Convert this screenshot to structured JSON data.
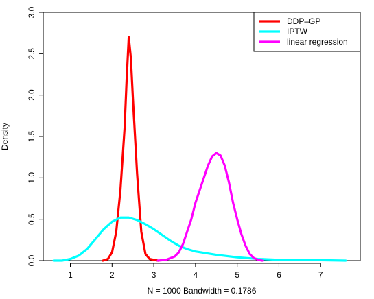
{
  "chart_data": {
    "type": "line",
    "xlabel": "N = 1000   Bandwidth = 0.1786",
    "ylabel": "Density",
    "xlim": [
      0.35,
      7.95
    ],
    "ylim": [
      0,
      3
    ],
    "x_ticks": [
      1,
      2,
      3,
      4,
      5,
      6,
      7
    ],
    "y_ticks": [
      0.0,
      0.5,
      1.0,
      1.5,
      2.0,
      2.5,
      3.0
    ],
    "x_tick_labels": [
      "1",
      "2",
      "3",
      "4",
      "5",
      "6",
      "7"
    ],
    "y_tick_labels": [
      "0.0",
      "0.5",
      "1.0",
      "1.5",
      "2.0",
      "2.5",
      "3.0"
    ],
    "grid": false,
    "legend_position": "top-right",
    "series": [
      {
        "name": "DDP–GP",
        "color": "#ff0000",
        "x": [
          1.78,
          1.9,
          2.0,
          2.1,
          2.2,
          2.3,
          2.35,
          2.4,
          2.45,
          2.5,
          2.6,
          2.7,
          2.8,
          2.9,
          3.0,
          3.1
        ],
        "y": [
          0.0,
          0.02,
          0.1,
          0.35,
          0.85,
          1.6,
          2.2,
          2.7,
          2.45,
          1.95,
          1.05,
          0.35,
          0.08,
          0.02,
          0.01,
          0.0
        ]
      },
      {
        "name": "IPTW",
        "color": "#00ffff",
        "x": [
          0.6,
          0.8,
          1.0,
          1.2,
          1.4,
          1.6,
          1.8,
          2.0,
          2.2,
          2.4,
          2.6,
          2.8,
          3.0,
          3.2,
          3.4,
          3.6,
          3.8,
          4.0,
          4.5,
          5.0,
          5.5,
          6.0,
          6.5,
          7.0,
          7.6
        ],
        "y": [
          0.0,
          0.0,
          0.02,
          0.06,
          0.14,
          0.26,
          0.38,
          0.47,
          0.52,
          0.52,
          0.49,
          0.44,
          0.38,
          0.31,
          0.24,
          0.18,
          0.14,
          0.11,
          0.07,
          0.04,
          0.02,
          0.01,
          0.005,
          0.005,
          0.0
        ]
      },
      {
        "name": "linear regression",
        "color": "#ff00ff",
        "x": [
          3.1,
          3.3,
          3.5,
          3.6,
          3.7,
          3.8,
          3.9,
          4.0,
          4.1,
          4.2,
          4.3,
          4.4,
          4.5,
          4.6,
          4.7,
          4.8,
          4.9,
          5.0,
          5.1,
          5.2,
          5.3,
          5.4,
          5.5,
          5.6
        ],
        "y": [
          0.0,
          0.01,
          0.05,
          0.1,
          0.2,
          0.35,
          0.5,
          0.7,
          0.85,
          1.0,
          1.15,
          1.26,
          1.3,
          1.27,
          1.15,
          0.95,
          0.7,
          0.5,
          0.32,
          0.18,
          0.08,
          0.03,
          0.01,
          0.0
        ]
      }
    ]
  }
}
